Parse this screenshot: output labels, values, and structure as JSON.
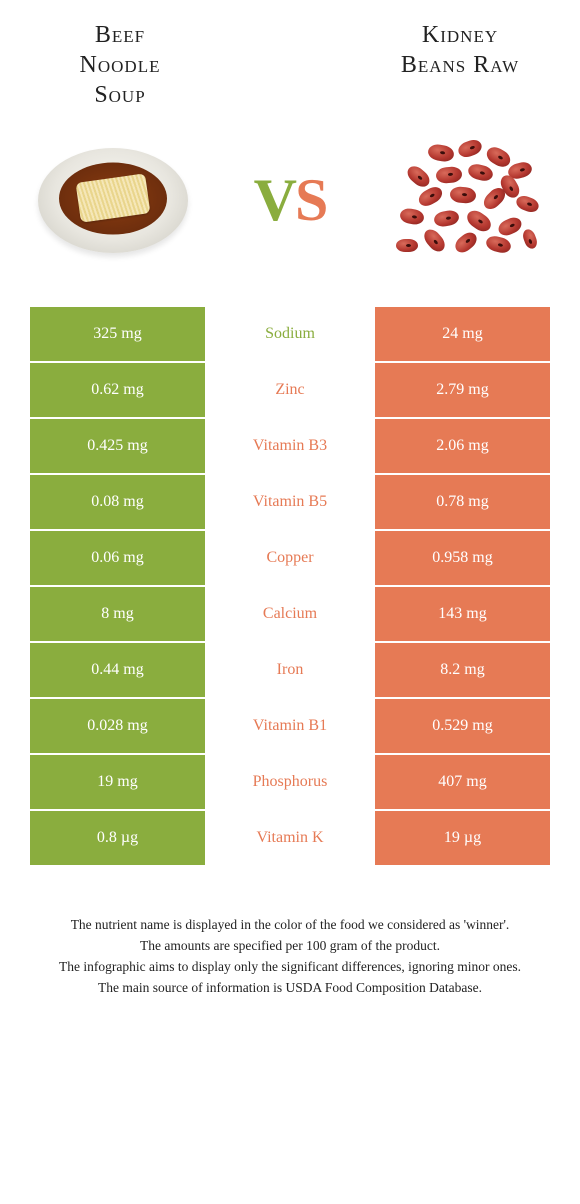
{
  "colors": {
    "left": "#8aad3e",
    "right": "#e67a55",
    "row_left_bg": "#8aad3e",
    "row_right_bg": "#e67a55"
  },
  "header": {
    "left_title_l1": "Beef",
    "left_title_l2": "Noodle",
    "left_title_l3": "Soup",
    "right_title_l1": "Kidney",
    "right_title_l2": "Beans Raw",
    "vs_v": "V",
    "vs_s": "S"
  },
  "rows": [
    {
      "left": "325 mg",
      "name": "Sodium",
      "right": "24 mg",
      "winner": "left"
    },
    {
      "left": "0.62 mg",
      "name": "Zinc",
      "right": "2.79 mg",
      "winner": "right"
    },
    {
      "left": "0.425 mg",
      "name": "Vitamin B3",
      "right": "2.06 mg",
      "winner": "right"
    },
    {
      "left": "0.08 mg",
      "name": "Vitamin B5",
      "right": "0.78 mg",
      "winner": "right"
    },
    {
      "left": "0.06 mg",
      "name": "Copper",
      "right": "0.958 mg",
      "winner": "right"
    },
    {
      "left": "8 mg",
      "name": "Calcium",
      "right": "143 mg",
      "winner": "right"
    },
    {
      "left": "0.44 mg",
      "name": "Iron",
      "right": "8.2 mg",
      "winner": "right"
    },
    {
      "left": "0.028 mg",
      "name": "Vitamin B1",
      "right": "0.529 mg",
      "winner": "right"
    },
    {
      "left": "19 mg",
      "name": "Phosphorus",
      "right": "407 mg",
      "winner": "right"
    },
    {
      "left": "0.8 µg",
      "name": "Vitamin K",
      "right": "19 µg",
      "winner": "right"
    }
  ],
  "footer": {
    "l1": "The nutrient name is displayed in the color of the food we considered as 'winner'.",
    "l2": "The amounts are specified per 100 gram of the product.",
    "l3": "The infographic aims to display only the significant differences, ignoring minor ones.",
    "l4": "The main source of information is USDA Food Composition Database."
  }
}
